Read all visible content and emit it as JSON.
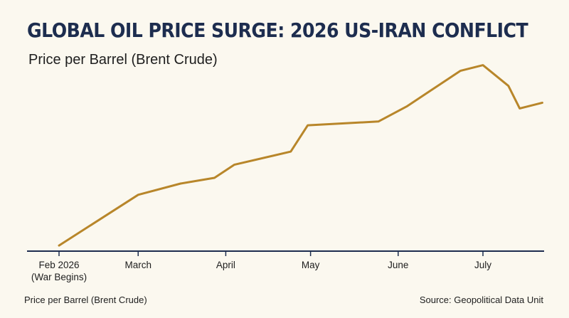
{
  "header": {
    "title": "GLOBAL OIL PRICE SURGE: 2026 US-IRAN CONFLICT",
    "subtitle": "Price per Barrel (Brent Crude)"
  },
  "footer": {
    "left_note": "Price per Barrel (Brent Crude)",
    "source": "Source: Geopolitical Data Unit"
  },
  "colors": {
    "title": "#1d2d4f",
    "axis": "#1d2d4f",
    "line": "#b8862a",
    "background": "#fbf8ef"
  },
  "chart_data": {
    "type": "line",
    "title": "GLOBAL OIL PRICE SURGE: 2026 US-IRAN CONFLICT",
    "subtitle": "Price per Barrel (Brent Crude)",
    "ylabel": "",
    "xlabel": "",
    "grid": false,
    "legend": "none",
    "x_ticks": [
      {
        "x": "2026-02-01",
        "label": "Feb 2026\n(War Begins)"
      },
      {
        "x": "2026-03-01",
        "label": "March"
      },
      {
        "x": "2026-04-01",
        "label": "April"
      },
      {
        "x": "2026-05-01",
        "label": "May"
      },
      {
        "x": "2026-06-01",
        "label": "June"
      },
      {
        "x": "2026-07-01",
        "label": "July"
      }
    ],
    "xlim": [
      "2026-02-01",
      "2026-07-22"
    ],
    "ylim": [
      0,
      100
    ],
    "series": [
      {
        "x": [
          "2026-02-01",
          "2026-03-01",
          "2026-03-16",
          "2026-03-28",
          "2026-04-04",
          "2026-04-24",
          "2026-04-30",
          "2026-05-25",
          "2026-06-04",
          "2026-06-23",
          "2026-07-01",
          "2026-07-10",
          "2026-07-14",
          "2026-07-22"
        ],
        "values": [
          3,
          30,
          36,
          39,
          46,
          53,
          67,
          69,
          77,
          96,
          99,
          88,
          76,
          79
        ]
      }
    ]
  }
}
